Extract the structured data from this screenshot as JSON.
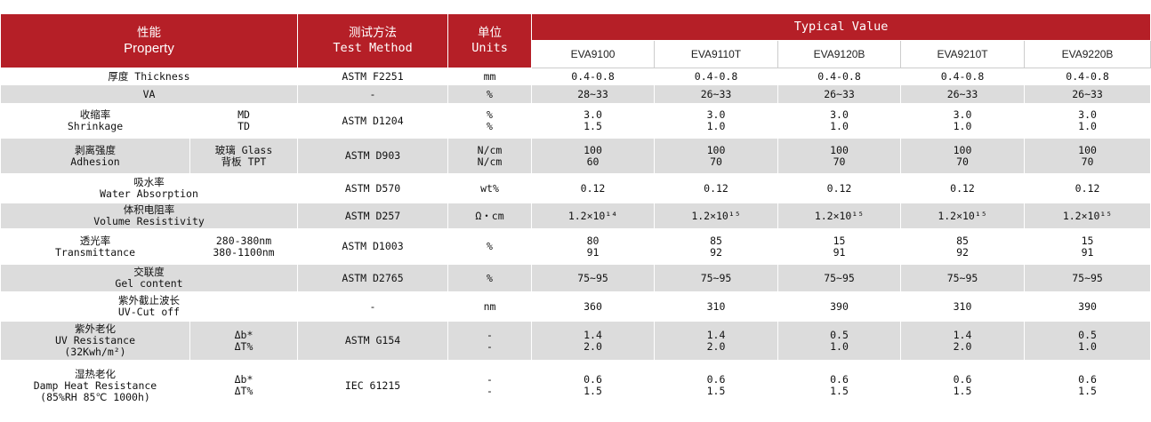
{
  "header": {
    "property_cn": "性能",
    "property_en": "Property",
    "method_cn": "测试方法",
    "method_en": "Test Method",
    "units_cn": "单位",
    "units_en": "Units",
    "typical": "Typical Value",
    "models": [
      "EVA9100",
      "EVA9110T",
      "EVA9120B",
      "EVA9210T",
      "EVA9220B"
    ]
  },
  "rows": [
    {
      "name": "厚度 Thickness",
      "sub": "",
      "method": "ASTM F2251",
      "unit": "mm",
      "values": [
        "0.4-0.8",
        "0.4-0.8",
        "0.4-0.8",
        "0.4-0.8",
        "0.4-0.8"
      ]
    },
    {
      "name": "VA",
      "sub": "",
      "method": "-",
      "unit": "%",
      "values": [
        "28~33",
        "26~33",
        "26~33",
        "26~33",
        "26~33"
      ]
    },
    {
      "name": "收缩率\nShrinkage",
      "sub": "MD\nTD",
      "method": "ASTM D1204",
      "unit": "%\n%",
      "values": [
        "3.0\n1.5",
        "3.0\n1.0",
        "3.0\n1.0",
        "3.0\n1.0",
        "3.0\n1.0"
      ]
    },
    {
      "name": "剥离强度\nAdhesion",
      "sub": "玻璃 Glass\n背板 TPT",
      "method": "ASTM D903",
      "unit": "N/cm\nN/cm",
      "values": [
        "100\n60",
        "100\n70",
        "100\n70",
        "100\n70",
        "100\n70"
      ]
    },
    {
      "name": "吸水率\nWater Absorption",
      "sub": "",
      "method": "ASTM D570",
      "unit": "wt%",
      "values": [
        "0.12",
        "0.12",
        "0.12",
        "0.12",
        "0.12"
      ]
    },
    {
      "name": "体积电阻率\nVolume Resistivity",
      "sub": "",
      "method": "ASTM D257",
      "unit": "Ω・cm",
      "values": [
        "1.2×10¹⁴",
        "1.2×10¹⁵",
        "1.2×10¹⁵",
        "1.2×10¹⁵",
        "1.2×10¹⁵"
      ]
    },
    {
      "name": "透光率\nTransmittance",
      "sub": "280-380nm\n380-1100nm",
      "method": "ASTM D1003",
      "unit": "%",
      "values": [
        "80\n91",
        "85\n92",
        "15\n91",
        "85\n92",
        "15\n91"
      ]
    },
    {
      "name": "交联度\nGel content",
      "sub": "",
      "method": "ASTM D2765",
      "unit": "%",
      "values": [
        "75~95",
        "75~95",
        "75~95",
        "75~95",
        "75~95"
      ]
    },
    {
      "name": "紫外截止波长\nUV-Cut off",
      "sub": "",
      "method": "-",
      "unit": "nm",
      "values": [
        "360",
        "310",
        "390",
        "310",
        "390"
      ]
    },
    {
      "name": "紫外老化\nUV Resistance\n(32Kwh/m²)",
      "sub": "Δb*\nΔT%",
      "method": "ASTM G154",
      "unit": "-\n-",
      "values": [
        "1.4\n2.0",
        "1.4\n2.0",
        "0.5\n1.0",
        "1.4\n2.0",
        "0.5\n1.0"
      ]
    },
    {
      "name": "湿热老化\nDamp Heat Resistance\n(85%RH  85℃  1000h)",
      "sub": "Δb*\nΔT%",
      "method": "IEC 61215",
      "unit": "-\n-",
      "values": [
        "0.6\n1.5",
        "0.6\n1.5",
        "0.6\n1.5",
        "0.6\n1.5",
        "0.6\n1.5"
      ]
    }
  ]
}
